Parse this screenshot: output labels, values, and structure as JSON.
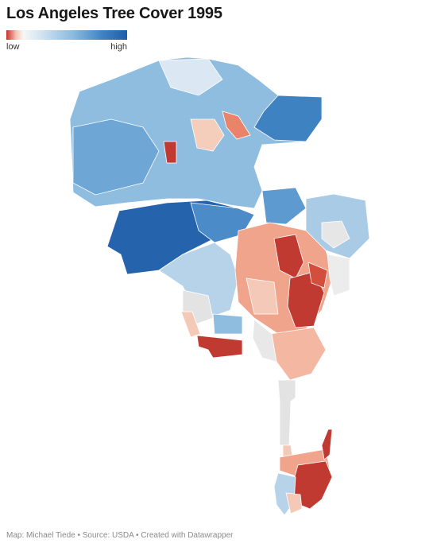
{
  "title": "Los Angeles Tree Cover 1995",
  "legend": {
    "low_label": "low",
    "high_label": "high",
    "colors": [
      "#c7322c",
      "#f4c4b2",
      "#f7f7f7",
      "#cfe1f0",
      "#8bbbdf",
      "#3f82c2",
      "#1f5ea8"
    ]
  },
  "map": {
    "subject": "Los Angeles city boundary shaded by tree cover",
    "palette": {
      "very_low": "#c03a32",
      "low": "#e9836a",
      "medium_low": "#f5c9b7",
      "neutral": "#e6e6e6",
      "medium": "#a9cbe6",
      "high": "#5d9ad0",
      "very_high": "#2563ad"
    }
  },
  "footer": {
    "credit": "Map: Michael Tiede • Source: USDA • Created with Datawrapper"
  }
}
